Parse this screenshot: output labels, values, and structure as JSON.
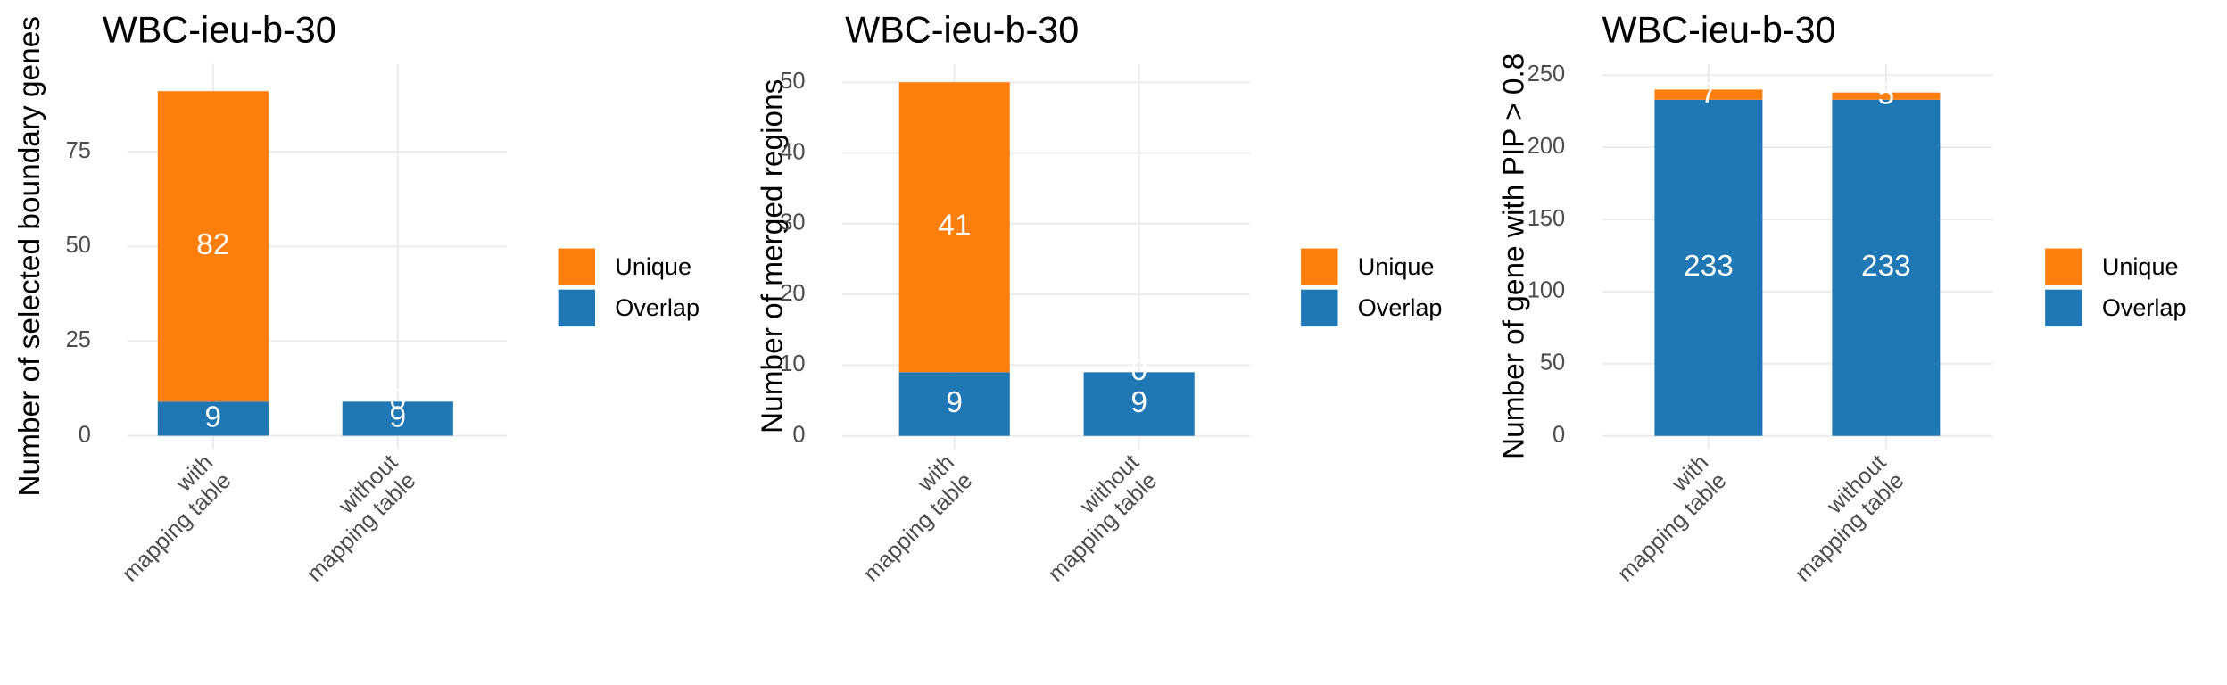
{
  "chart_data": [
    {
      "type": "stacked_bar",
      "title": "WBC-ieu-b-30",
      "ylabel": "Number of selected boundary genes",
      "categories": [
        "with\nmapping table",
        "without\nmapping table"
      ],
      "series": [
        {
          "name": "Overlap",
          "color": "#1f77b4",
          "values": [
            9,
            9
          ]
        },
        {
          "name": "Unique",
          "color": "#ff7f0e",
          "values": [
            82,
            0
          ]
        }
      ],
      "ylim": [
        -3.4,
        98.2
      ],
      "yticks": [
        0,
        25,
        50,
        75
      ],
      "grid": true,
      "legend": "right"
    },
    {
      "type": "stacked_bar",
      "title": "WBC-ieu-b-30",
      "ylabel": "Number of merged regions",
      "categories": [
        "with\nmapping table",
        "without\nmapping table"
      ],
      "series": [
        {
          "name": "Overlap",
          "color": "#1f77b4",
          "values": [
            9,
            9
          ]
        },
        {
          "name": "Unique",
          "color": "#ff7f0e",
          "values": [
            41,
            0
          ]
        }
      ],
      "ylim": [
        -1.8,
        52.6
      ],
      "yticks": [
        0,
        10,
        20,
        30,
        40,
        50
      ],
      "grid": true,
      "legend": "right"
    },
    {
      "type": "stacked_bar",
      "title": "WBC-ieu-b-30",
      "ylabel": "Number of gene with PIP > 0.8",
      "categories": [
        "with\nmapping table",
        "without\nmapping table"
      ],
      "series": [
        {
          "name": "Overlap",
          "color": "#1f77b4",
          "values": [
            233,
            233
          ]
        },
        {
          "name": "Unique",
          "color": "#ff7f0e",
          "values": [
            7,
            5
          ]
        }
      ],
      "ylim": [
        -8.8,
        257.8
      ],
      "yticks": [
        0,
        50,
        100,
        150,
        200,
        250
      ],
      "grid": true,
      "legend": "right"
    }
  ]
}
